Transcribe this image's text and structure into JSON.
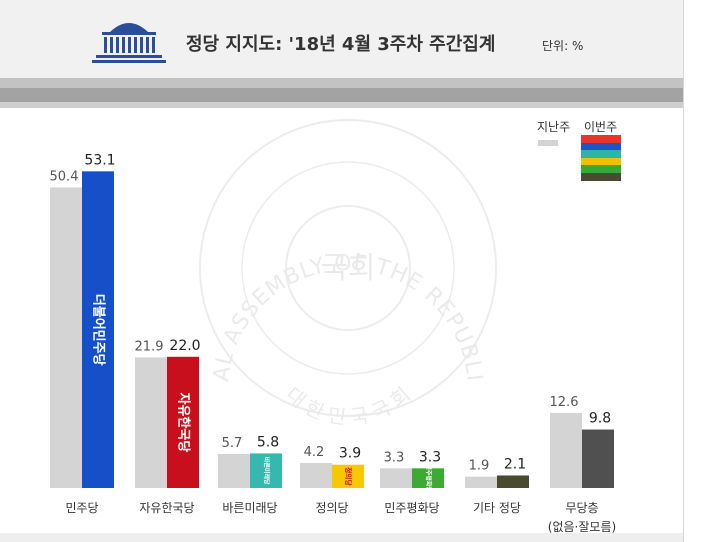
{
  "header": {
    "title": "정당 지지도: '18년 4월 3주차 주간집계",
    "unit": "단위: %"
  },
  "legend": {
    "previous": "지난주",
    "current": "이번주",
    "current_swatch_colors": [
      "#e8352c",
      "#1a56c4",
      "#2bb5a8",
      "#f2c000",
      "#38a935",
      "#4a4a32"
    ]
  },
  "colors": {
    "previous_bar": "#d4d4d4",
    "minju": "#1550c8",
    "jayu": "#c8101c",
    "bareun": "#35b8b0",
    "jeongui": "#f5c800",
    "pyeonghwa": "#3daa34",
    "other": "#4a4a32",
    "none": "#505050"
  },
  "watermark": {
    "outer_text": "THE NATIONAL ASSEMBLY OF THE REPUBLIC OF KOREA",
    "inner_text": "대 한 민 국 국 회",
    "center_text": "국회"
  },
  "chart_data": {
    "type": "bar",
    "title": "정당 지지도: '18년 4월 3주차 주간집계",
    "unit": "%",
    "categories": [
      "민주당",
      "자유한국당",
      "바른미래당",
      "정의당",
      "민주평화당",
      "기타 정당",
      "무당층"
    ],
    "category_sublabels": [
      "",
      "",
      "",
      "",
      "",
      "",
      "(없음·잘모름)"
    ],
    "series": [
      {
        "name": "지난주",
        "values": [
          50.4,
          21.9,
          5.7,
          4.2,
          3.3,
          1.9,
          12.6
        ]
      },
      {
        "name": "이번주",
        "values": [
          53.1,
          22.0,
          5.8,
          3.9,
          3.3,
          2.1,
          9.8
        ]
      }
    ],
    "value_labels": {
      "previous": [
        "50.4",
        "21.9",
        "5.7",
        "4.2",
        "3.3",
        "1.9",
        "12.6"
      ],
      "current": [
        "53.1",
        "22.0",
        "5.8",
        "3.9",
        "3.3",
        "2.1",
        "9.8"
      ]
    },
    "bar_logos": [
      "더불어민주당",
      "자유한국당",
      "바른미래당",
      "정의당",
      "민주평화당",
      "",
      ""
    ],
    "ylim": [
      0,
      55
    ],
    "grid": false,
    "legend_position": "top-right"
  }
}
